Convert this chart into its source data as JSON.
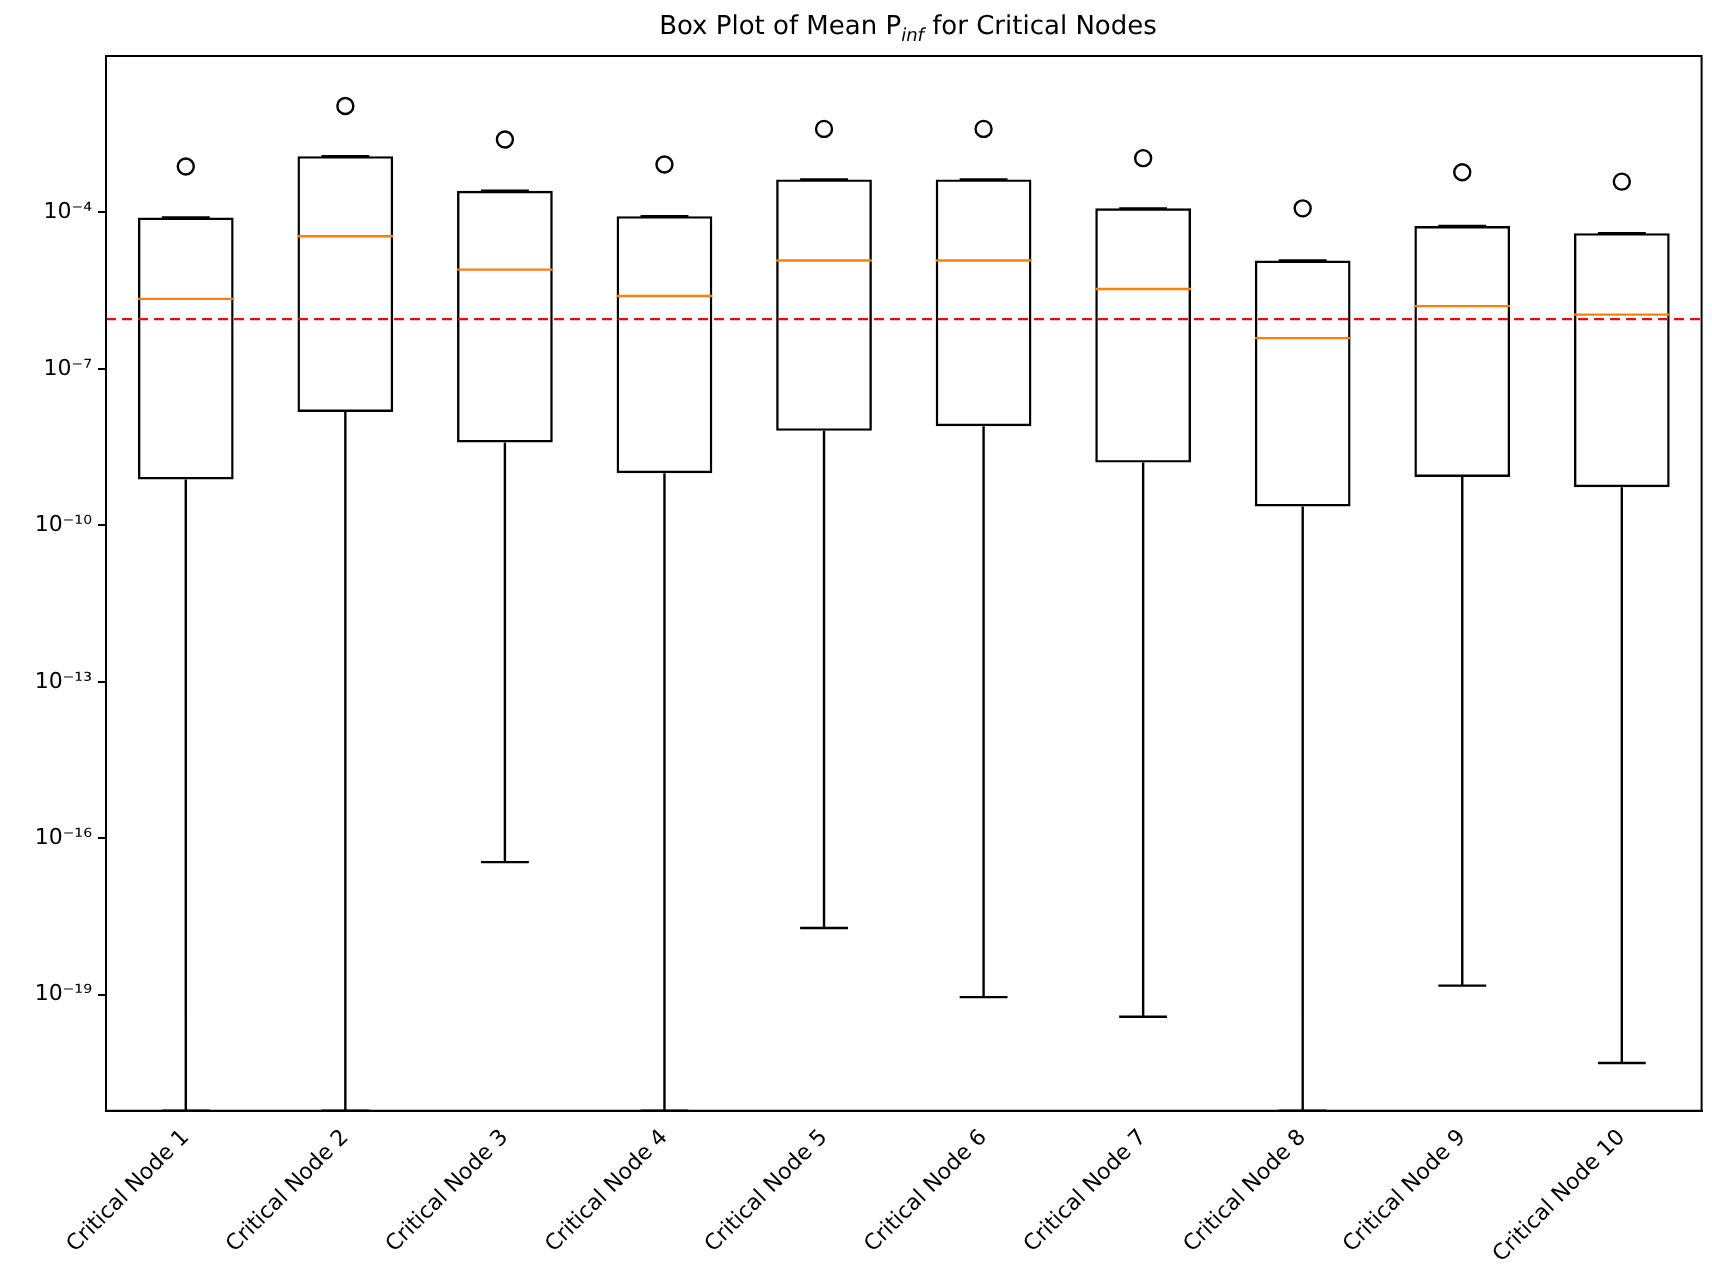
{
  "chart_data": {
    "type": "box",
    "title": "Box Plot of Mean P$_{inf}$ for Critical Nodes",
    "categories": [
      "Critical Node 1",
      "Critical Node 2",
      "Critical Node 3",
      "Critical Node 4",
      "Critical Node 5",
      "Critical Node 6",
      "Critical Node 7",
      "Critical Node 8",
      "Critical Node 9",
      "Critical Node 10"
    ],
    "boxes": [
      {
        "low": 6e-22,
        "q1": 7.6e-10,
        "median": 2.2e-06,
        "q3": 8e-05,
        "high": 8e-05,
        "outliers": [
          0.00076
        ]
      },
      {
        "low": 6e-22,
        "q1": 1.5e-08,
        "median": 3.5e-05,
        "q3": 0.0012,
        "high": 0.0012,
        "outliers": [
          0.011
        ]
      },
      {
        "low": 3.5e-17,
        "q1": 3.9e-09,
        "median": 8e-06,
        "q3": 0.00026,
        "high": 0.00026,
        "outliers": [
          0.0025
        ]
      },
      {
        "low": 6e-22,
        "q1": 1e-09,
        "median": 2.5e-06,
        "q3": 8.5e-05,
        "high": 8.5e-05,
        "outliers": [
          0.00083
        ]
      },
      {
        "low": 1.9e-18,
        "q1": 6.5e-09,
        "median": 1.2e-05,
        "q3": 0.00043,
        "high": 0.00043,
        "outliers": [
          0.004
        ]
      },
      {
        "low": 9e-20,
        "q1": 8e-09,
        "median": 1.2e-05,
        "q3": 0.00043,
        "high": 0.00043,
        "outliers": [
          0.004
        ]
      },
      {
        "low": 3.8e-20,
        "q1": 1.6e-09,
        "median": 3.4e-06,
        "q3": 0.00012,
        "high": 0.00012,
        "outliers": [
          0.0011
        ]
      },
      {
        "low": 6e-22,
        "q1": 2.3e-10,
        "median": 3.9e-07,
        "q3": 1.2e-05,
        "high": 1.2e-05,
        "outliers": [
          0.00012
        ]
      },
      {
        "low": 1.5e-19,
        "q1": 8.5e-10,
        "median": 1.6e-06,
        "q3": 5.5e-05,
        "high": 5.5e-05,
        "outliers": [
          0.00059
        ]
      },
      {
        "low": 4.9e-21,
        "q1": 5.4e-10,
        "median": 1.1e-06,
        "q3": 4e-05,
        "high": 4e-05,
        "outliers": [
          0.00039
        ]
      }
    ],
    "color": "#000000",
    "log": "y",
    "ylim": [
      6e-22,
      0.1
    ],
    "yticks": [
      {
        "value": 1e-19,
        "label": "10⁻¹⁹"
      },
      {
        "value": 1e-16,
        "label": "10⁻¹⁶"
      },
      {
        "value": 1e-13,
        "label": "10⁻¹³"
      },
      {
        "value": 1e-10,
        "label": "10⁻¹⁰"
      },
      {
        "value": 1e-07,
        "label": "10⁻⁷"
      },
      {
        "value": 0.0001,
        "label": "10⁻⁴"
      }
    ],
    "ref_lines": [
      {
        "axis": "y",
        "value": 9e-07,
        "color": "#ff0000",
        "line_style": "dashed"
      }
    ],
    "grid": false,
    "legend": false,
    "marker": "circle"
  }
}
